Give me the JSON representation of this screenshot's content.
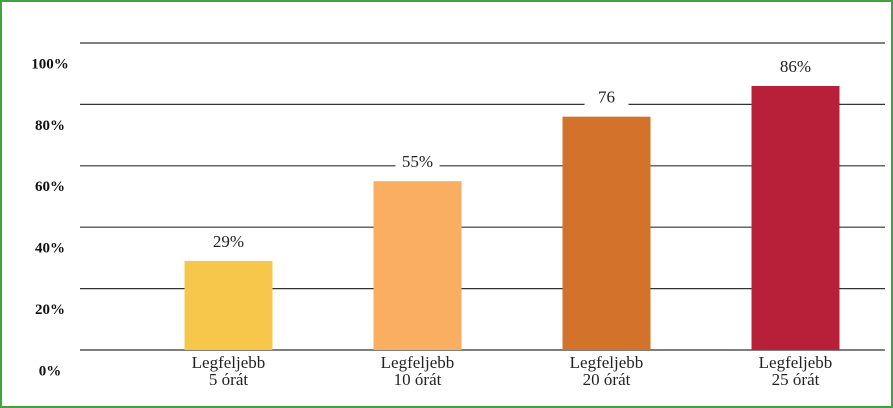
{
  "chart_data": {
    "type": "bar",
    "categories": [
      "Legfeljebb\n5 órát",
      "Legfeljebb\n10 órát",
      "Legfeljebb\n20 órát",
      "Legfeljebb\n25 órát"
    ],
    "values": [
      29,
      55,
      76,
      86
    ],
    "value_labels": [
      "29%",
      "55%",
      "76",
      "86%"
    ],
    "colors": [
      "#f6c74b",
      "#f9ae62",
      "#d3732b",
      "#b8203a"
    ],
    "ylim": [
      0,
      100
    ],
    "yticks": [
      {
        "value": 0,
        "label": "0%"
      },
      {
        "value": 20,
        "label": "20%"
      },
      {
        "value": 40,
        "label": "40%"
      },
      {
        "value": 60,
        "label": "60%"
      },
      {
        "value": 80,
        "label": "80%"
      },
      {
        "value": 100,
        "label": "100%"
      }
    ],
    "grid": true
  }
}
